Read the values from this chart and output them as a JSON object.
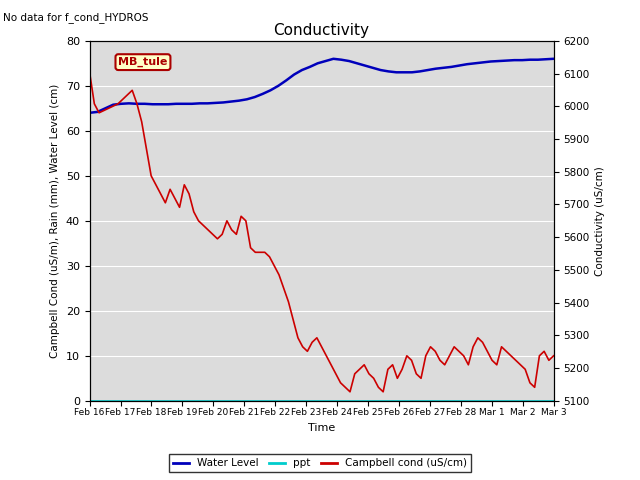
{
  "title": "Conductivity",
  "no_data_text": "No data for f_cond_HYDROS",
  "xlabel": "Time",
  "ylabel_left": "Campbell Cond (uS/m), Rain (mm), Water Level (cm)",
  "ylabel_right": "Conductivity (uS/cm)",
  "ylim_left": [
    0,
    80
  ],
  "ylim_right": [
    5100,
    6200
  ],
  "bg_color": "#dcdcdc",
  "legend_box_text": "MB_tule",
  "legend_box_color": "#ffffc8",
  "legend_box_border": "#aa0000",
  "xtick_labels": [
    "Feb 16",
    "Feb 17",
    "Feb 18",
    "Feb 19",
    "Feb 20",
    "Feb 21",
    "Feb 22",
    "Feb 23",
    "Feb 24",
    "Feb 25",
    "Feb 26",
    "Feb 27",
    "Feb 28",
    "Mar 1",
    "Mar 2",
    "Mar 3"
  ],
  "water_level_color": "#0000bb",
  "ppt_color": "#00cccc",
  "campbell_color": "#cc0000",
  "water_level_data": [
    64.0,
    64.2,
    65.0,
    65.8,
    66.0,
    66.1,
    66.0,
    66.0,
    65.9,
    65.9,
    65.9,
    66.0,
    66.0,
    66.0,
    66.1,
    66.1,
    66.2,
    66.3,
    66.5,
    66.7,
    67.0,
    67.5,
    68.2,
    69.0,
    70.0,
    71.2,
    72.5,
    73.5,
    74.2,
    75.0,
    75.5,
    76.0,
    75.8,
    75.5,
    75.0,
    74.5,
    74.0,
    73.5,
    73.2,
    73.0,
    73.0,
    73.0,
    73.2,
    73.5,
    73.8,
    74.0,
    74.2,
    74.5,
    74.8,
    75.0,
    75.2,
    75.4,
    75.5,
    75.6,
    75.7,
    75.7,
    75.8,
    75.8,
    75.9,
    76.0
  ],
  "ppt_data": [
    0,
    0
  ],
  "campbell_data": [
    73,
    66,
    64,
    64.5,
    65,
    65.5,
    66,
    67,
    68,
    69,
    66,
    62,
    56,
    50,
    48,
    46,
    44,
    47,
    45,
    43,
    48,
    46,
    42,
    40,
    39,
    38,
    37,
    36,
    37,
    40,
    38,
    37,
    41,
    40,
    34,
    33,
    33,
    33,
    32,
    30,
    28,
    25,
    22,
    18,
    14,
    12,
    11,
    13,
    14,
    12,
    10,
    8,
    6,
    4,
    3,
    2,
    6,
    7,
    8,
    6,
    5,
    3,
    2,
    7,
    8,
    5,
    7,
    10,
    9,
    6,
    5,
    10,
    12,
    11,
    9,
    8,
    10,
    12,
    11,
    10,
    8,
    12,
    14,
    13,
    11,
    9,
    8,
    12,
    11,
    10,
    9,
    8,
    7,
    4,
    3,
    10,
    11,
    9,
    10
  ]
}
